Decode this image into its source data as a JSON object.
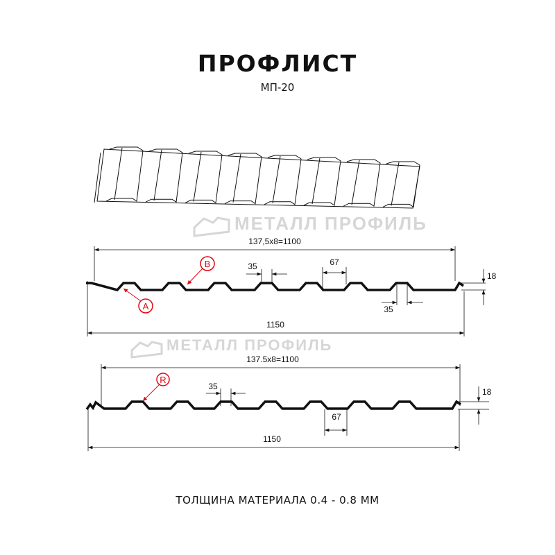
{
  "title": "ПРОФЛИСТ",
  "subtitle": "МП-20",
  "footer": "ТОЛЩИНА МАТЕРИАЛА 0.4 - 0.8 ММ",
  "watermark": "МЕТАЛЛ ПРОФИЛЬ",
  "profile_1": {
    "pitch_dim": "137,5x8=1100",
    "width_dim": "1150",
    "height_dim": "18",
    "top_dim": "35",
    "bottom_dim": "35",
    "gap_dim": "67",
    "marker_a": "A",
    "marker_b": "B"
  },
  "profile_2": {
    "pitch_dim": "137.5x8=1100",
    "width_dim": "1150",
    "height_dim": "18",
    "top_dim": "35",
    "gap_dim": "67",
    "marker_r": "R"
  },
  "colors": {
    "line": "#111111",
    "marker": "#e30613",
    "watermark": "#d6d6d6"
  }
}
